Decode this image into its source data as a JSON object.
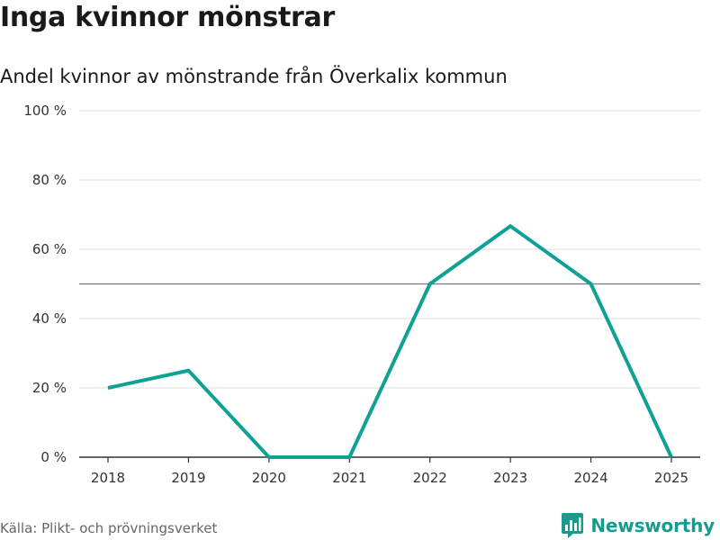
{
  "header": {
    "title": "Inga kvinnor mönstrar",
    "subtitle": "Andel kvinnor av mönstrande från Överkalix kommun"
  },
  "footer": {
    "source": "Källa: Plikt- och prövningsverket",
    "brand": "Newsworthy",
    "brand_icon": "bar-chart-icon"
  },
  "colors": {
    "series": "#0fa195",
    "reference_line": "#777777",
    "grid": "#dddddd",
    "brand": "#189b8d"
  },
  "chart_data": {
    "type": "line",
    "title": "Inga kvinnor mönstrar",
    "subtitle": "Andel kvinnor av mönstrande från Överkalix kommun",
    "categories": [
      "2018",
      "2019",
      "2020",
      "2021",
      "2022",
      "2023",
      "2024",
      "2025"
    ],
    "series": [
      {
        "values": [
          20,
          25,
          0,
          0,
          50,
          66.7,
          50,
          0
        ]
      }
    ],
    "reference_line": 50,
    "ylim": [
      0,
      100
    ],
    "yticks": [
      0,
      20,
      40,
      60,
      80,
      100
    ],
    "ytick_labels": [
      "0 %",
      "20 %",
      "40 %",
      "60 %",
      "80 %",
      "100 %"
    ],
    "xlabel": "",
    "ylabel": "",
    "grid": true,
    "legend": "none"
  }
}
